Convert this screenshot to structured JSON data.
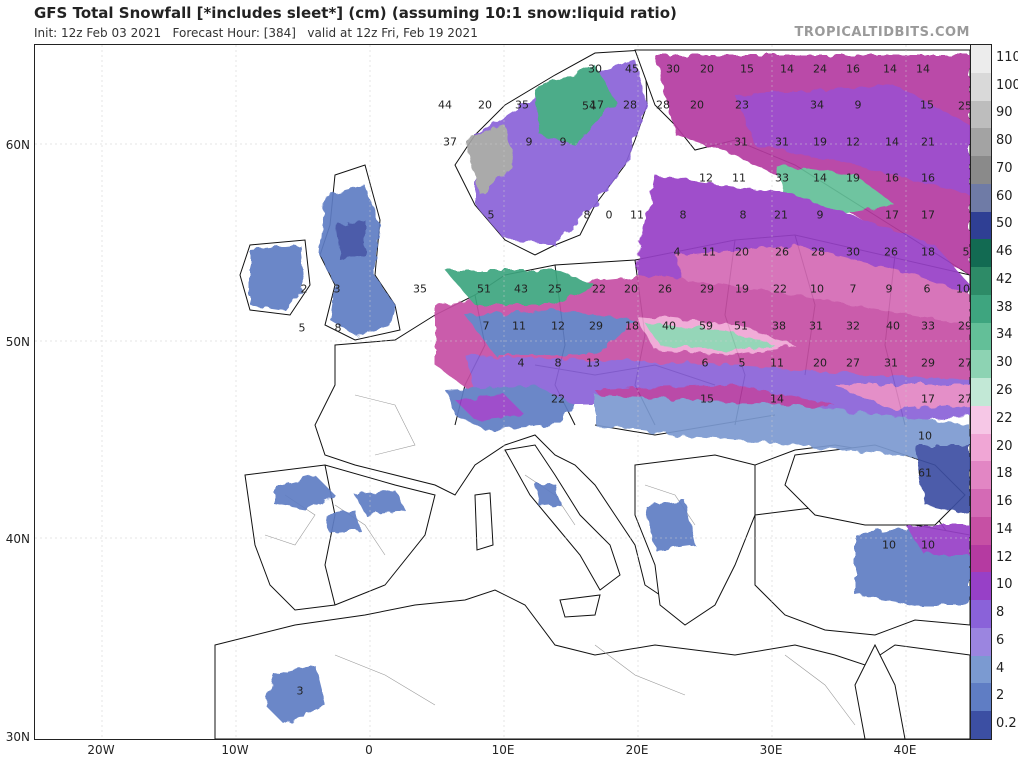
{
  "header": {
    "title": "GFS Total Snowfall [*includes sleet*] (cm) (assuming 10:1 snow:liquid ratio)",
    "subtitle": "Init: 12z Feb 03 2021   Forecast Hour: [384]   valid at 12z Fri, Feb 19 2021",
    "brand": "TROPICALTIDBITS.COM"
  },
  "axes": {
    "lat_labels": [
      "60N",
      "50N",
      "40N",
      "30N"
    ],
    "lon_labels": [
      "20W",
      "10W",
      "0",
      "10E",
      "20E",
      "30E",
      "40E"
    ]
  },
  "legend": {
    "labels": [
      "110",
      "100",
      "90",
      "80",
      "70",
      "60",
      "50",
      "46",
      "42",
      "38",
      "34",
      "30",
      "26",
      "22",
      "20",
      "18",
      "16",
      "14",
      "12",
      "10",
      "8",
      "6",
      "4",
      "2",
      "0.2"
    ],
    "colors": [
      "#ececec",
      "#d9d9d9",
      "#bdbdbd",
      "#a3a3a3",
      "#8a8a8a",
      "#6f7ba6",
      "#2f3f94",
      "#126a52",
      "#2d8b67",
      "#3ea57f",
      "#63bf98",
      "#8dd3b3",
      "#c2e8d6",
      "#f6c7e6",
      "#f0a6d5",
      "#e286c4",
      "#d46ab5",
      "#c650a4",
      "#b53aa1",
      "#9740c7",
      "#8a62d9",
      "#9b85e0",
      "#7b9ad1",
      "#5f7dc4",
      "#3c4fa3"
    ]
  },
  "snow_values": [
    {
      "v": "30"
    },
    {
      "v": "45"
    },
    {
      "v": "30"
    },
    {
      "v": "20"
    },
    {
      "v": "15"
    },
    {
      "v": "14"
    },
    {
      "v": "24"
    },
    {
      "v": "16"
    },
    {
      "v": "14"
    },
    {
      "v": "14"
    },
    {
      "v": "44"
    },
    {
      "v": "20"
    },
    {
      "v": "35"
    },
    {
      "v": "17"
    },
    {
      "v": "28"
    },
    {
      "v": "28"
    },
    {
      "v": "20"
    },
    {
      "v": "23"
    },
    {
      "v": "34"
    },
    {
      "v": "9"
    },
    {
      "v": "15"
    },
    {
      "v": "37"
    },
    {
      "v": "9"
    },
    {
      "v": "9"
    },
    {
      "v": "31"
    },
    {
      "v": "31"
    },
    {
      "v": "19"
    },
    {
      "v": "12"
    },
    {
      "v": "14"
    },
    {
      "v": "21"
    },
    {
      "v": "12"
    },
    {
      "v": "11"
    },
    {
      "v": "33"
    },
    {
      "v": "14"
    },
    {
      "v": "19"
    },
    {
      "v": "16"
    },
    {
      "v": "16"
    },
    {
      "v": "5"
    },
    {
      "v": "8"
    },
    {
      "v": "0"
    },
    {
      "v": "11"
    },
    {
      "v": "8"
    },
    {
      "v": "8"
    },
    {
      "v": "21"
    },
    {
      "v": "9"
    },
    {
      "v": "17"
    },
    {
      "v": "17"
    },
    {
      "v": "4"
    },
    {
      "v": "11"
    },
    {
      "v": "20"
    },
    {
      "v": "26"
    },
    {
      "v": "28"
    },
    {
      "v": "30"
    },
    {
      "v": "26"
    },
    {
      "v": "18"
    },
    {
      "v": "5"
    },
    {
      "v": "35"
    },
    {
      "v": "51"
    },
    {
      "v": "43"
    },
    {
      "v": "25"
    },
    {
      "v": "22"
    },
    {
      "v": "20"
    },
    {
      "v": "26"
    },
    {
      "v": "29"
    },
    {
      "v": "19"
    },
    {
      "v": "22"
    },
    {
      "v": "10"
    },
    {
      "v": "7"
    },
    {
      "v": "9"
    },
    {
      "v": "6"
    },
    {
      "v": "10"
    },
    {
      "v": "2"
    },
    {
      "v": "3"
    },
    {
      "v": "7"
    },
    {
      "v": "11"
    },
    {
      "v": "12"
    },
    {
      "v": "29"
    },
    {
      "v": "18"
    },
    {
      "v": "40"
    },
    {
      "v": "59"
    },
    {
      "v": "51"
    },
    {
      "v": "38"
    },
    {
      "v": "31"
    },
    {
      "v": "32"
    },
    {
      "v": "40"
    },
    {
      "v": "33"
    },
    {
      "v": "29"
    },
    {
      "v": "4"
    },
    {
      "v": "8"
    },
    {
      "v": "13"
    },
    {
      "v": "6"
    },
    {
      "v": "5"
    },
    {
      "v": "11"
    },
    {
      "v": "20"
    },
    {
      "v": "27"
    },
    {
      "v": "31"
    },
    {
      "v": "29"
    },
    {
      "v": "27"
    },
    {
      "v": "22"
    },
    {
      "v": "15"
    },
    {
      "v": "14"
    },
    {
      "v": "17"
    },
    {
      "v": "27"
    },
    {
      "v": "10"
    },
    {
      "v": "61"
    },
    {
      "v": "10"
    },
    {
      "v": "10"
    },
    {
      "v": "3"
    },
    {
      "v": "54"
    },
    {
      "v": "25"
    },
    {
      "v": "5"
    },
    {
      "v": "8"
    }
  ],
  "colors": {
    "land": "#ffffff",
    "border": "#111111",
    "admin": "#9a9a9a"
  }
}
